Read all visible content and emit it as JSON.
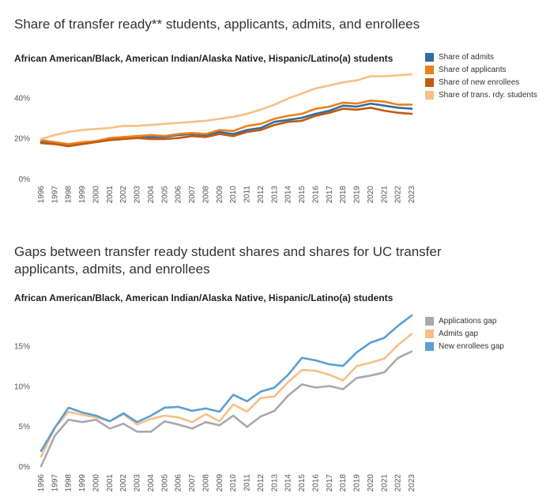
{
  "chart_data": [
    {
      "type": "line",
      "title": "Share of transfer ready** students, applicants, admits, and enrollees",
      "subtitle": "African American/Black, American Indian/Alaska Native, Hispanic/Latino(a) students",
      "x": [
        "1996",
        "1997",
        "1998",
        "1999",
        "2000",
        "2001",
        "2002",
        "2003",
        "2004",
        "2005",
        "2006",
        "2007",
        "2008",
        "2009",
        "2010",
        "2011",
        "2012",
        "2013",
        "2014",
        "2015",
        "2016",
        "2017",
        "2018",
        "2019",
        "2020",
        "2021",
        "2022",
        "2023"
      ],
      "y_ticks": [
        "0%",
        "20%",
        "40%"
      ],
      "ylim": [
        0,
        55
      ],
      "legend_position": "right",
      "series": [
        {
          "name": "Share of admits",
          "color": "#2e6da4",
          "values": [
            18,
            17.5,
            16.5,
            17.5,
            18.5,
            19.5,
            20,
            21,
            20.5,
            20.5,
            21.5,
            22,
            21.5,
            23,
            22,
            24,
            25,
            28,
            29,
            30,
            32,
            33.5,
            36,
            35.5,
            37,
            36,
            35,
            34.5
          ]
        },
        {
          "name": "Share of applicants",
          "color": "#ef7f1a",
          "values": [
            19,
            18,
            17,
            18,
            18.5,
            20,
            20.5,
            21,
            21.5,
            21,
            22,
            22.5,
            22,
            24,
            23.5,
            26,
            27,
            29.5,
            31,
            32,
            34.5,
            35.5,
            37.5,
            37,
            38.5,
            38,
            36.5,
            36.5
          ]
        },
        {
          "name": "Share of new enrollees",
          "color": "#c15a11",
          "values": [
            17.5,
            17,
            16,
            17,
            18,
            19,
            19.5,
            20,
            19.5,
            19.5,
            20,
            21,
            20.5,
            22,
            21,
            23,
            24,
            26.5,
            28,
            28.5,
            31,
            32.5,
            34.5,
            34,
            35,
            33.5,
            32.5,
            32
          ]
        },
        {
          "name": "Share of trans. rdy. students",
          "color": "#f7bf85",
          "values": [
            19.5,
            21.5,
            23,
            24,
            24.5,
            25,
            26,
            26,
            26.5,
            27,
            27.5,
            28,
            28.5,
            29.5,
            30.5,
            32,
            34,
            36.5,
            39.5,
            42,
            44.5,
            46,
            47.5,
            48.5,
            50.5,
            50.5,
            51,
            51.5
          ]
        }
      ]
    },
    {
      "type": "line",
      "title": "Gaps between transfer ready student shares and shares for UC transfer applicants, admits, and enrollees",
      "subtitle": "African American/Black, American Indian/Alaska Native, Hispanic/Latino(a) students",
      "x": [
        "1996",
        "1997",
        "1998",
        "1999",
        "2000",
        "2001",
        "2002",
        "2003",
        "2004",
        "2005",
        "2006",
        "2007",
        "2008",
        "2009",
        "2010",
        "2011",
        "2012",
        "2013",
        "2014",
        "2015",
        "2016",
        "2017",
        "2018",
        "2019",
        "2020",
        "2021",
        "2022",
        "2023"
      ],
      "y_ticks": [
        "0%",
        "5%",
        "10%",
        "15%"
      ],
      "ylim": [
        0,
        19.5
      ],
      "legend_position": "right",
      "series": [
        {
          "name": "Applications gap",
          "color": "#a8a8b0",
          "values": [
            0,
            3.8,
            5.8,
            5.5,
            5.8,
            4.7,
            5.3,
            4.3,
            4.3,
            5.6,
            5.2,
            4.7,
            5.5,
            5.1,
            6.3,
            4.9,
            6.2,
            6.9,
            8.8,
            10.2,
            9.8,
            10,
            9.6,
            11,
            11.3,
            11.7,
            13.5,
            14.3
          ]
        },
        {
          "name": "Admits gap",
          "color": "#f7bf85",
          "values": [
            1.2,
            4.8,
            6.8,
            6.4,
            6.1,
            5.6,
            6.5,
            5.2,
            5.9,
            6.3,
            6.1,
            5.5,
            6.5,
            5.6,
            7.7,
            6.8,
            8.5,
            8.7,
            10.5,
            12,
            11.9,
            11.4,
            10.7,
            12.5,
            12.9,
            13.4,
            15.1,
            16.5
          ]
        },
        {
          "name": "New enrollees gap",
          "color": "#5a9fd4",
          "values": [
            1.9,
            4.8,
            7.3,
            6.7,
            6.3,
            5.6,
            6.6,
            5.5,
            6.3,
            7.3,
            7.4,
            6.9,
            7.2,
            6.8,
            8.9,
            8.1,
            9.3,
            9.8,
            11.4,
            13.5,
            13.2,
            12.7,
            12.5,
            14.2,
            15.4,
            16,
            17.5,
            18.8
          ]
        }
      ]
    }
  ]
}
